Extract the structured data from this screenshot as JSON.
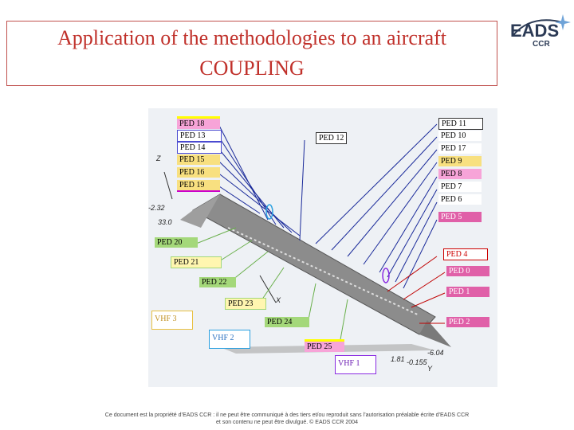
{
  "title": {
    "line1": "Application of the methodologies to an aircraft",
    "line2": "COUPLING"
  },
  "logo": {
    "name": "EADS",
    "sub": "CCR"
  },
  "figure": {
    "labels_left": [
      "PED 18",
      "PED 13",
      "PED 14",
      "PED 15",
      "PED 16",
      "PED 19"
    ],
    "labels_right": [
      "PED 11",
      "PED 10",
      "PED 17",
      "PED 9",
      "PED 8",
      "PED 7",
      "PED 6",
      "PED 5",
      "PED 4",
      "PED 0",
      "PED 1",
      "PED 2"
    ],
    "labels_middle": {
      "ped12": "PED 12",
      "ped20": "PED 20",
      "ped21": "PED 21",
      "ped22": "PED 22",
      "ped23": "PED 23",
      "ped24": "PED 24",
      "ped25": "PED 25",
      "vhf3": "VHF 3",
      "vhf2": "VHF 2",
      "vhf1": "VHF 1"
    },
    "axes": {
      "z": "Z",
      "x": "X",
      "y": "Y",
      "v1": "-2.32",
      "v2": "33.0",
      "v3": "-6.04",
      "v4": "1.81",
      "v5": "-0.155"
    }
  },
  "footer": {
    "line1": "Ce document est la propriété d’EADS CCR : il ne peut être communiqué à des tiers et/ou reproduit sans l’autorisation préalable écrite d’EADS CCR",
    "line2": "et son contenu ne peut être divulgué. © EADS CCR 2004"
  },
  "colors": {
    "title": "#c0302a",
    "border": "#c0504d",
    "fuselage": "#8c8c8c"
  }
}
